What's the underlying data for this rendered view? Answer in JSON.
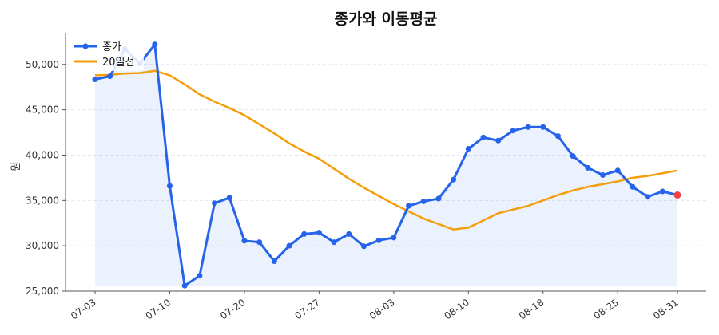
{
  "chart_data": {
    "type": "line",
    "title": "종가와 이동평균",
    "xlabel": "",
    "ylabel": "원",
    "ylim": [
      25000,
      53500
    ],
    "yticks": [
      "25,000",
      "30,000",
      "35,000",
      "40,000",
      "45,000",
      "50,000"
    ],
    "xtick_labels": [
      "07-03",
      "07-10",
      "07-20",
      "07-27",
      "08-03",
      "08-10",
      "08-18",
      "08-25",
      "08-31"
    ],
    "xtick_index": [
      0,
      5,
      10,
      15,
      20,
      25,
      30,
      35,
      39
    ],
    "x": [
      "07-03",
      "07-04",
      "07-05",
      "07-06",
      "07-07",
      "07-10",
      "07-11",
      "07-12",
      "07-13",
      "07-14",
      "07-20",
      "07-21",
      "07-24",
      "07-25",
      "07-26",
      "07-27",
      "07-28",
      "07-31",
      "08-01",
      "08-02",
      "08-03",
      "08-04",
      "08-07",
      "08-08",
      "08-09",
      "08-10",
      "08-11",
      "08-14",
      "08-16",
      "08-17",
      "08-18",
      "08-21",
      "08-22",
      "08-23",
      "08-24",
      "08-25",
      "08-28",
      "08-29",
      "08-30",
      "08-31"
    ],
    "series": [
      {
        "name": "종가",
        "color": "#2563eb",
        "marker": "circle",
        "fill": true,
        "values": [
          48350,
          48700,
          51700,
          50100,
          52200,
          36600,
          25600,
          26700,
          34700,
          35300,
          30550,
          30400,
          28300,
          30000,
          31300,
          31450,
          30400,
          31300,
          29950,
          30600,
          30900,
          34400,
          34900,
          35200,
          37300,
          40700,
          41950,
          41600,
          42700,
          43100,
          43100,
          42100,
          39900,
          38600,
          37800,
          38300,
          36500,
          35400,
          36000,
          35600
        ]
      },
      {
        "name": "20일선",
        "color": "#f59e0b",
        "marker": "none",
        "values": [
          48800,
          48850,
          49000,
          49050,
          49300,
          48800,
          47800,
          46700,
          45900,
          45200,
          44400,
          43400,
          42400,
          41300,
          40400,
          39600,
          38500,
          37400,
          36400,
          35500,
          34600,
          33800,
          33000,
          32400,
          31800,
          32000,
          32800,
          33600,
          34000,
          34400,
          35000,
          35600,
          36100,
          36500,
          36800,
          37100,
          37500,
          37700,
          38000,
          38300
        ]
      }
    ],
    "last_point_color": "#ef4444",
    "grid": true,
    "legend": "top-left"
  }
}
